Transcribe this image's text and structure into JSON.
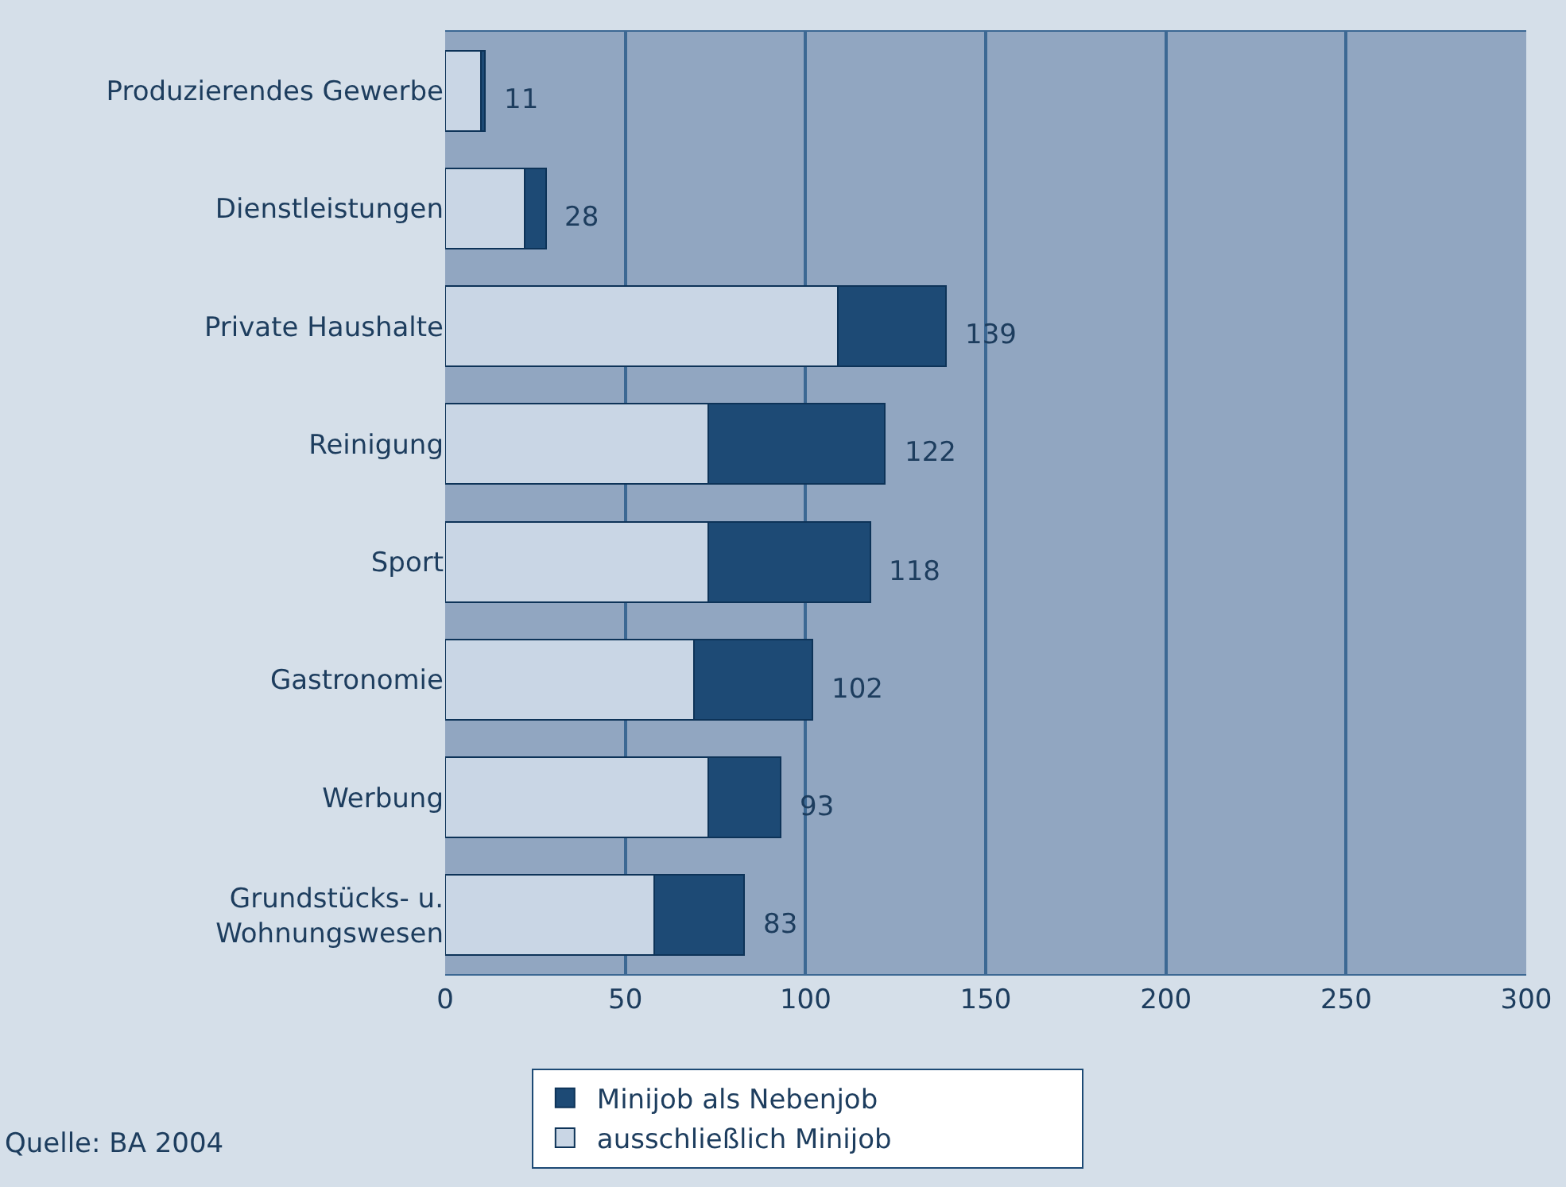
{
  "chart_data": {
    "type": "bar",
    "orientation": "horizontal",
    "stacked": true,
    "categories": [
      "Produzierendes Gewerbe",
      "Dienstleistungen",
      "Private Haushalte",
      "Reinigung",
      "Sport",
      "Gastronomie",
      "Werbung",
      "Grundstücks- u. Wohnungswesen"
    ],
    "series": [
      {
        "name": "ausschließlich Minijob",
        "color": "#c9d6e5",
        "values": [
          10,
          22,
          109,
          73,
          73,
          69,
          73,
          58
        ]
      },
      {
        "name": "Minijob als Nebenjob",
        "color": "#1d4a75",
        "values": [
          1,
          6,
          30,
          49,
          45,
          33,
          20,
          25
        ]
      }
    ],
    "totals": [
      "11",
      "28",
      "139",
      "122",
      "118",
      "102",
      "93",
      "83"
    ],
    "xlim": [
      0,
      300
    ],
    "xticks": [
      0,
      50,
      100,
      150,
      200,
      250,
      300
    ],
    "grid": "x",
    "legend": "bottom",
    "annotations": [
      "Quelle: BA 2004"
    ]
  }
}
